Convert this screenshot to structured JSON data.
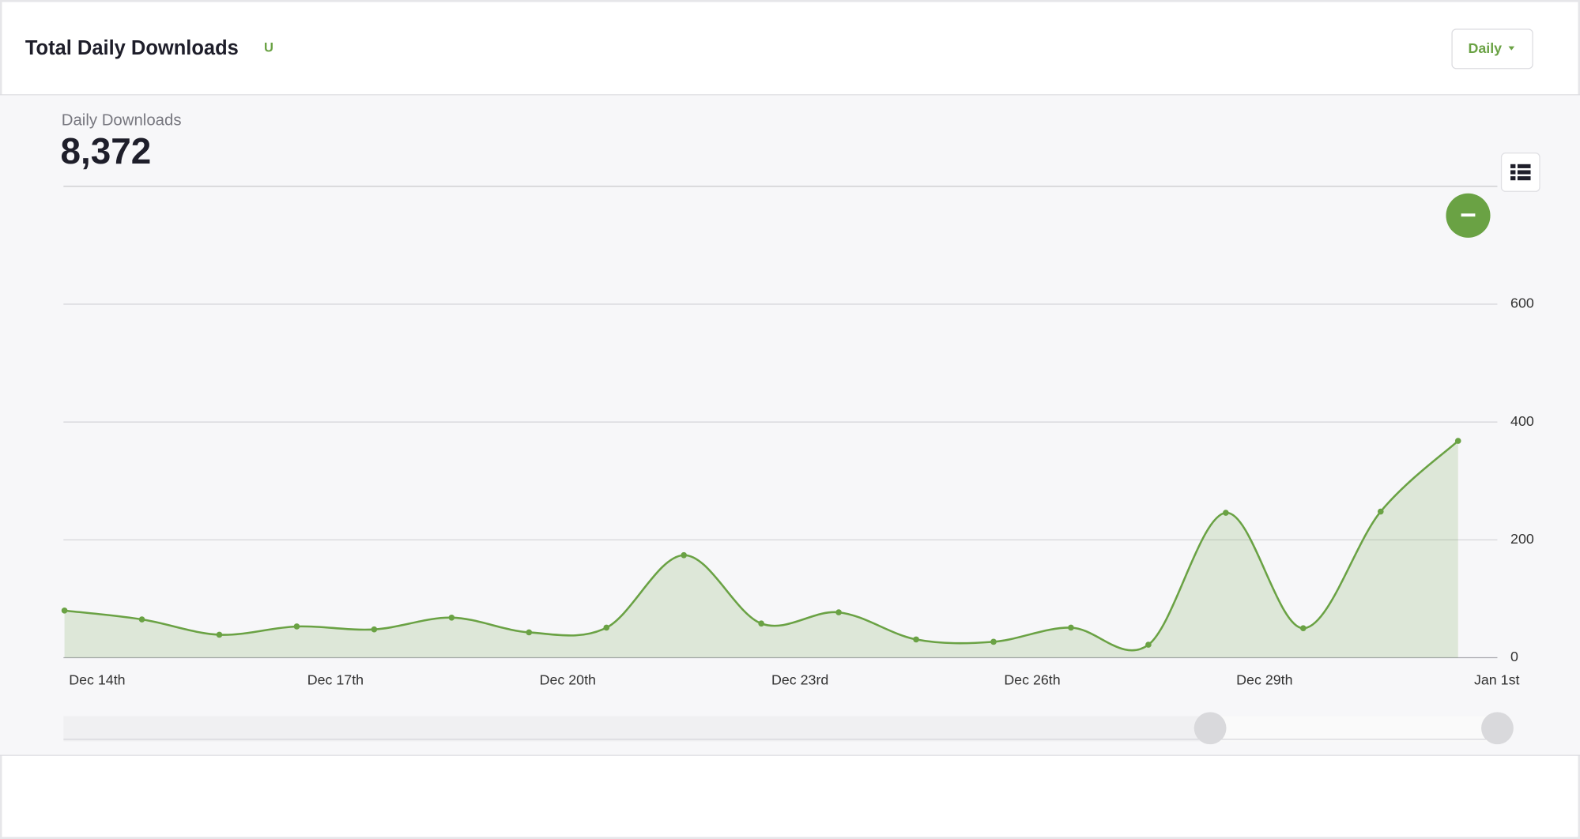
{
  "header": {
    "title": "Total Daily Downloads",
    "badge": "U",
    "button": "Daily"
  },
  "stat": {
    "label": "Daily Downloads",
    "value": "8,372"
  },
  "chart_data": {
    "type": "area",
    "categories": [
      "Dec 14th",
      null,
      null,
      "Dec 17th",
      null,
      null,
      "Dec 20th",
      null,
      null,
      "Dec 23rd",
      null,
      null,
      "Dec 26th",
      null,
      null,
      "Dec 29th",
      null,
      null,
      "Jan 1st"
    ],
    "series": [
      {
        "name": "Daily Downloads",
        "color": "#6aa244",
        "values": [
          80,
          65,
          39,
          53,
          48,
          68,
          43,
          51,
          174,
          58,
          77,
          31,
          27,
          51,
          22,
          246,
          50,
          248,
          368
        ]
      }
    ],
    "ylim": [
      0,
      800
    ],
    "yticks": [
      0,
      200,
      400,
      600
    ],
    "grid": true
  }
}
